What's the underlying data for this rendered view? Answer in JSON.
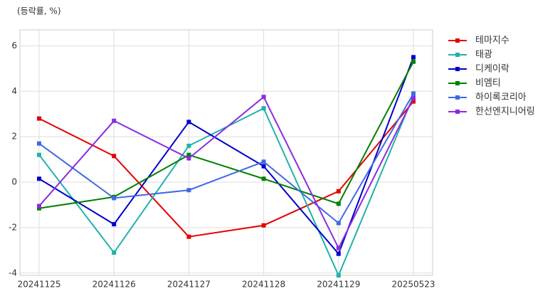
{
  "chart_data": {
    "type": "line",
    "title": "(등락률, %)",
    "categories": [
      "20241125",
      "20241126",
      "20241127",
      "20241128",
      "20241129",
      "20250523"
    ],
    "series": [
      {
        "name": "테마지수",
        "color": "#e60000",
        "values": [
          2.8,
          1.15,
          -2.4,
          -1.9,
          -0.4,
          3.55
        ]
      },
      {
        "name": "태광",
        "color": "#20b2aa",
        "values": [
          1.2,
          -3.1,
          1.6,
          3.25,
          -4.1,
          3.8
        ]
      },
      {
        "name": "디케이락",
        "color": "#0000cd",
        "values": [
          0.15,
          -1.85,
          2.65,
          0.7,
          -3.15,
          5.5
        ]
      },
      {
        "name": "비엠티",
        "color": "#008000",
        "values": [
          -1.15,
          -0.65,
          1.2,
          0.15,
          -0.95,
          5.3
        ]
      },
      {
        "name": "하이록코리아",
        "color": "#4169e1",
        "values": [
          1.7,
          -0.7,
          -0.35,
          0.9,
          -1.8,
          3.9
        ]
      },
      {
        "name": "한선엔지니어링",
        "color": "#8a2be2",
        "values": [
          -1.05,
          2.7,
          1.05,
          3.75,
          -2.9,
          3.7
        ]
      }
    ],
    "ylim": [
      -4.1,
      6.7
    ],
    "yticks": [
      -4,
      -2,
      0,
      2,
      4,
      6
    ],
    "grid": true,
    "legend": "outside-right"
  }
}
